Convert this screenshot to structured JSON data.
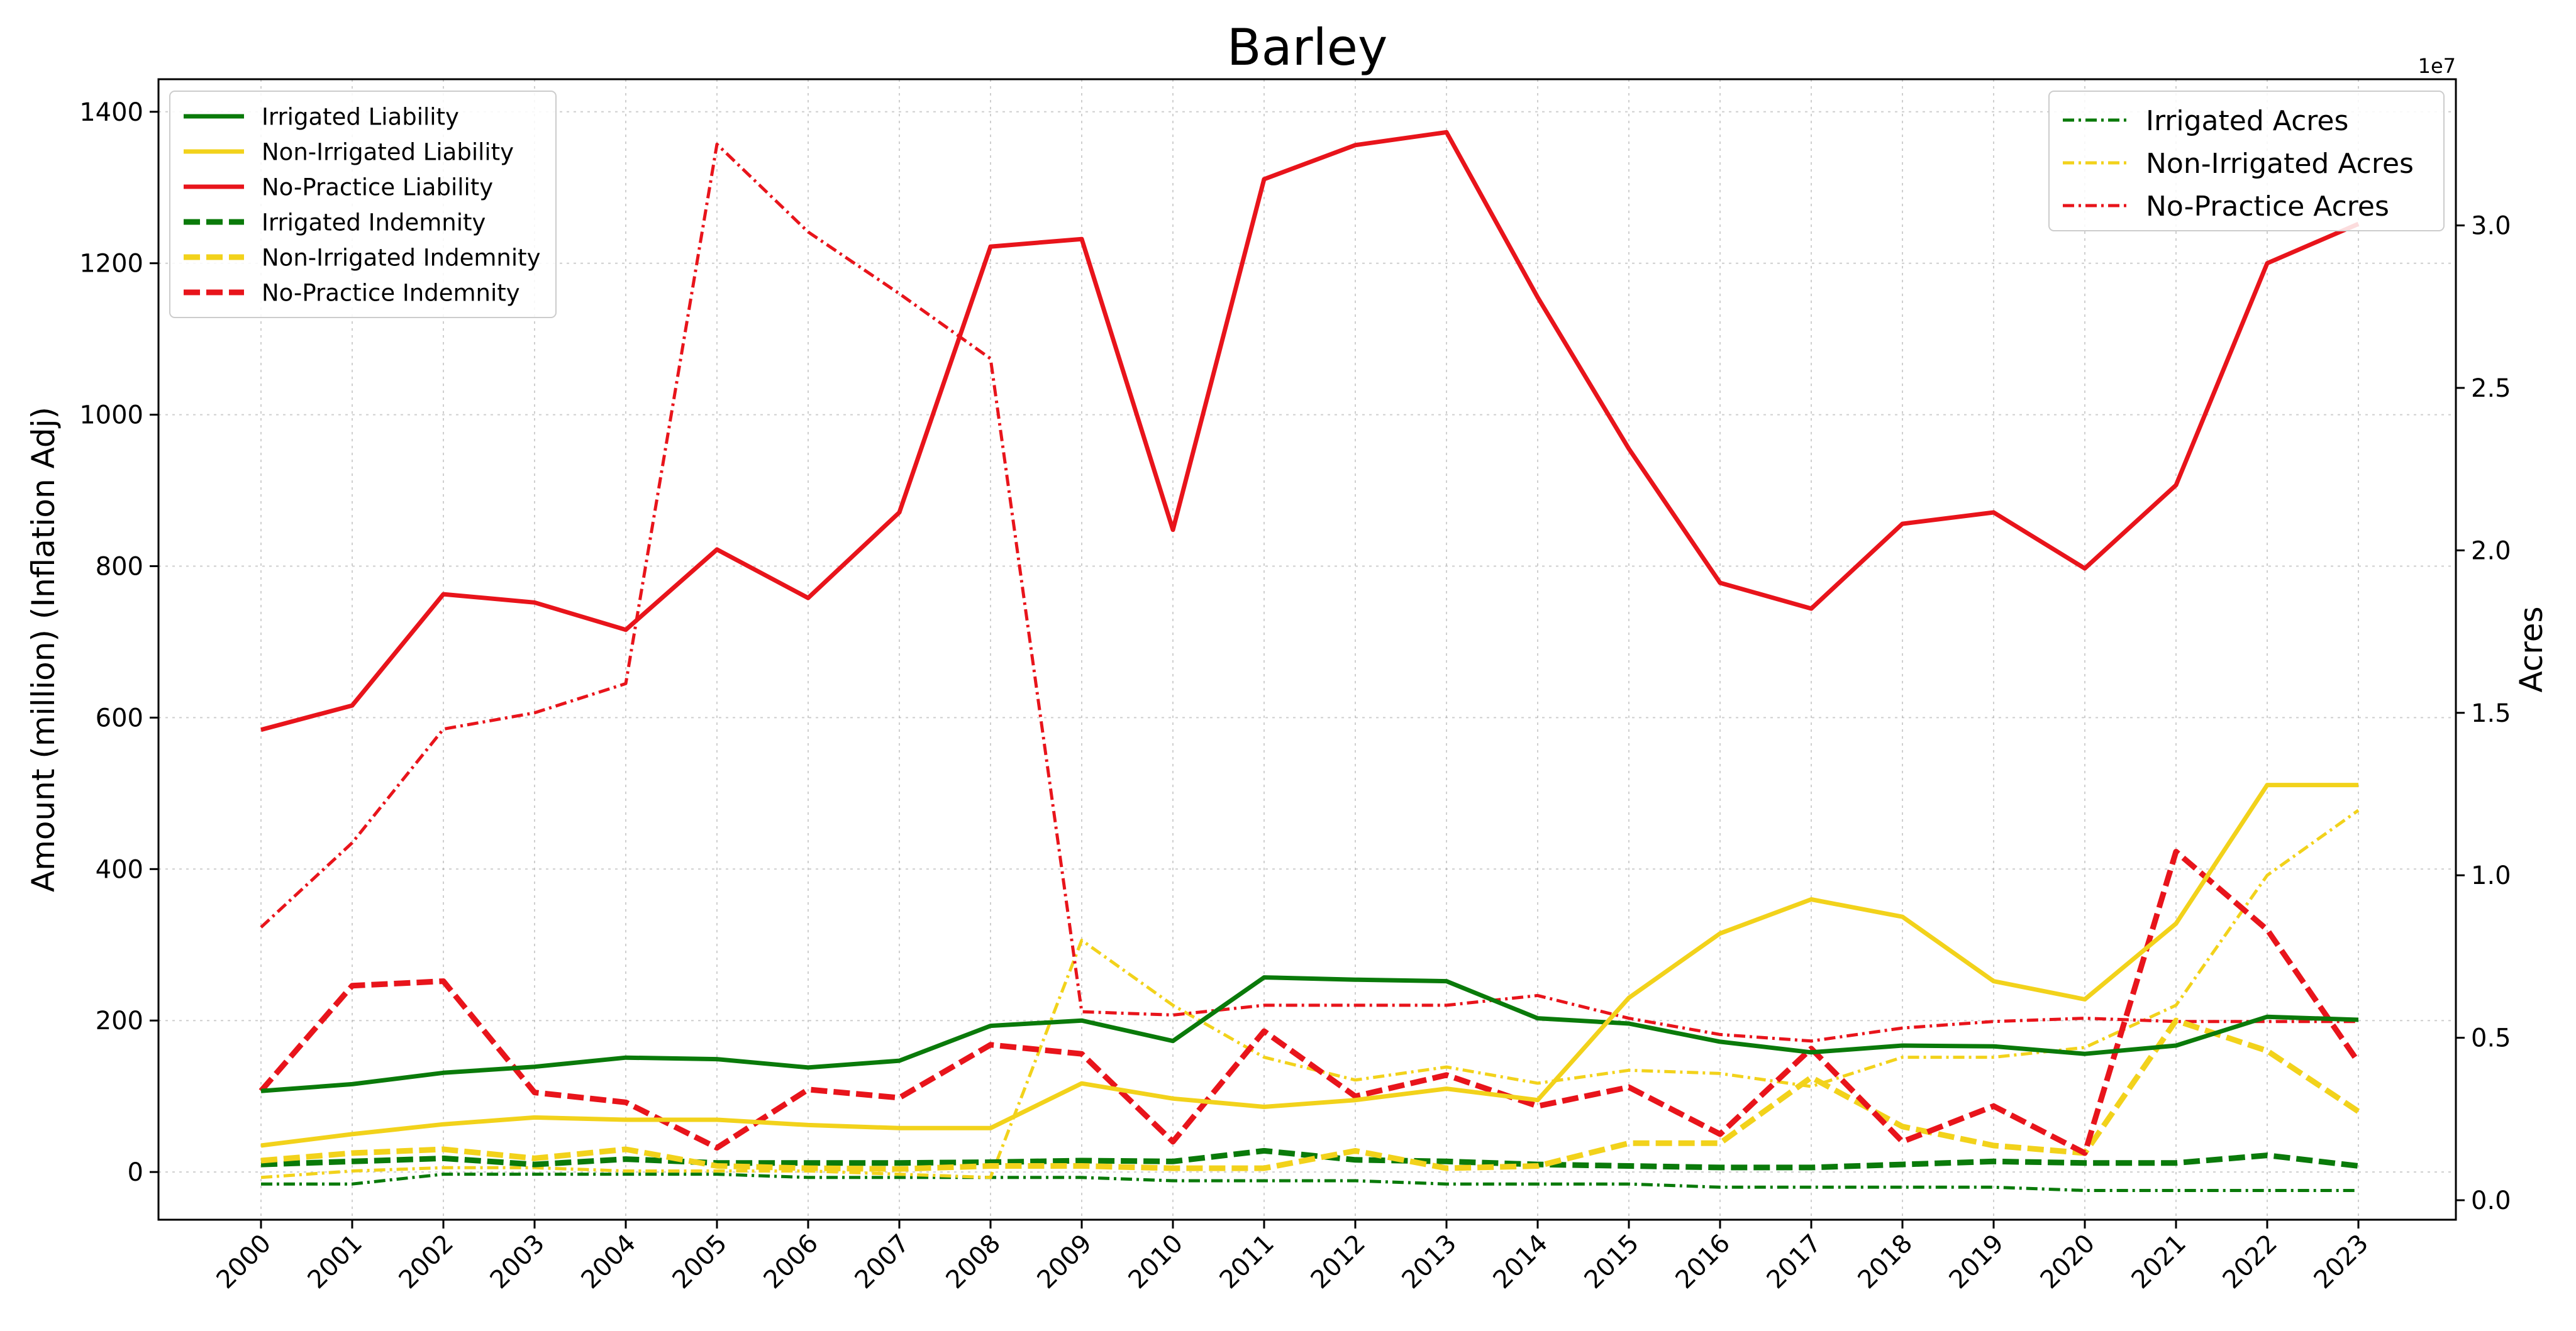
{
  "chart_data": {
    "type": "line",
    "title": "Barley",
    "xlabel": "",
    "ylabel": "Amount (million) (Inflation Adj)",
    "y2label": "Acres",
    "y2_offset_text": "1e7",
    "x": [
      "2000",
      "2001",
      "2002",
      "2003",
      "2004",
      "2005",
      "2006",
      "2007",
      "2008",
      "2009",
      "2010",
      "2011",
      "2012",
      "2013",
      "2014",
      "2015",
      "2016",
      "2017",
      "2018",
      "2019",
      "2020",
      "2021",
      "2022",
      "2023"
    ],
    "ylim": [
      -63,
      1443
    ],
    "y2lim": [
      -0.06,
      3.45
    ],
    "yticks": [
      0,
      200,
      400,
      600,
      800,
      1000,
      1200,
      1400
    ],
    "y2ticks": [
      "0.0",
      "0.5",
      "1.0",
      "1.5",
      "2.0",
      "2.5",
      "3.0"
    ],
    "grid": true,
    "legend_left_position": "upper-left",
    "legend_right_position": "upper-right",
    "series": [
      {
        "name": "Irrigated Liability",
        "axis": "left",
        "style": "solid",
        "color": "#0a7a0a",
        "values": [
          107,
          116,
          131,
          139,
          151,
          149,
          138,
          147,
          193,
          200,
          173,
          257,
          254,
          252,
          203,
          196,
          172,
          158,
          167,
          166,
          156,
          167,
          205,
          201
        ]
      },
      {
        "name": "Non-Irrigated Liability",
        "axis": "left",
        "style": "solid",
        "color": "#f2d21b",
        "values": [
          35,
          50,
          63,
          72,
          69,
          69,
          62,
          58,
          58,
          117,
          97,
          86,
          95,
          110,
          95,
          230,
          315,
          360,
          337,
          252,
          228,
          328,
          511,
          511
        ]
      },
      {
        "name": "No-Practice Liability",
        "axis": "left",
        "style": "solid",
        "color": "#e8141b",
        "values": [
          584,
          616,
          763,
          752,
          716,
          822,
          758,
          871,
          1222,
          1232,
          848,
          1311,
          1356,
          1373,
          1155,
          955,
          778,
          744,
          856,
          871,
          797,
          907,
          1200,
          1252
        ]
      },
      {
        "name": "Irrigated Indemnity",
        "axis": "left",
        "style": "dashed",
        "color": "#0a7a0a",
        "values": [
          10,
          14,
          18,
          10,
          17,
          12,
          12,
          12,
          13,
          15,
          14,
          28,
          16,
          14,
          10,
          8,
          6,
          6,
          10,
          14,
          12,
          12,
          22,
          8
        ]
      },
      {
        "name": "Non-Irrigated Indemnity",
        "axis": "left",
        "style": "dashed",
        "color": "#f2d21b",
        "values": [
          15,
          25,
          30,
          18,
          30,
          8,
          5,
          4,
          8,
          8,
          5,
          5,
          28,
          5,
          8,
          38,
          38,
          125,
          60,
          35,
          25,
          200,
          160,
          80
        ]
      },
      {
        "name": "No-Practice Indemnity",
        "axis": "left",
        "style": "dashed",
        "color": "#e8141b",
        "values": [
          107,
          246,
          252,
          105,
          92,
          32,
          109,
          98,
          168,
          156,
          40,
          186,
          100,
          128,
          87,
          112,
          50,
          163,
          40,
          87,
          25,
          423,
          320,
          145
        ]
      },
      {
        "name": "Irrigated Acres",
        "axis": "right",
        "style": "dashdot",
        "color": "#0a7a0a",
        "values": [
          0.05,
          0.05,
          0.08,
          0.08,
          0.08,
          0.08,
          0.07,
          0.07,
          0.07,
          0.07,
          0.06,
          0.06,
          0.06,
          0.05,
          0.05,
          0.05,
          0.04,
          0.04,
          0.04,
          0.04,
          0.03,
          0.03,
          0.03,
          0.03
        ]
      },
      {
        "name": "Non-Irrigated Acres",
        "axis": "right",
        "style": "dashdot",
        "color": "#f2d21b",
        "values": [
          0.07,
          0.09,
          0.1,
          0.1,
          0.09,
          0.09,
          0.09,
          0.08,
          0.07,
          0.8,
          0.6,
          0.44,
          0.37,
          0.41,
          0.36,
          0.4,
          0.39,
          0.35,
          0.44,
          0.44,
          0.47,
          0.6,
          1.0,
          1.2
        ]
      },
      {
        "name": "No-Practice Acres",
        "axis": "right",
        "style": "dashdot",
        "color": "#e8141b",
        "values": [
          0.84,
          1.1,
          1.45,
          1.5,
          1.59,
          3.25,
          2.98,
          2.79,
          2.59,
          0.58,
          0.57,
          0.6,
          0.6,
          0.6,
          0.63,
          0.56,
          0.51,
          0.49,
          0.53,
          0.55,
          0.56,
          0.55,
          0.55,
          0.55
        ]
      }
    ]
  }
}
